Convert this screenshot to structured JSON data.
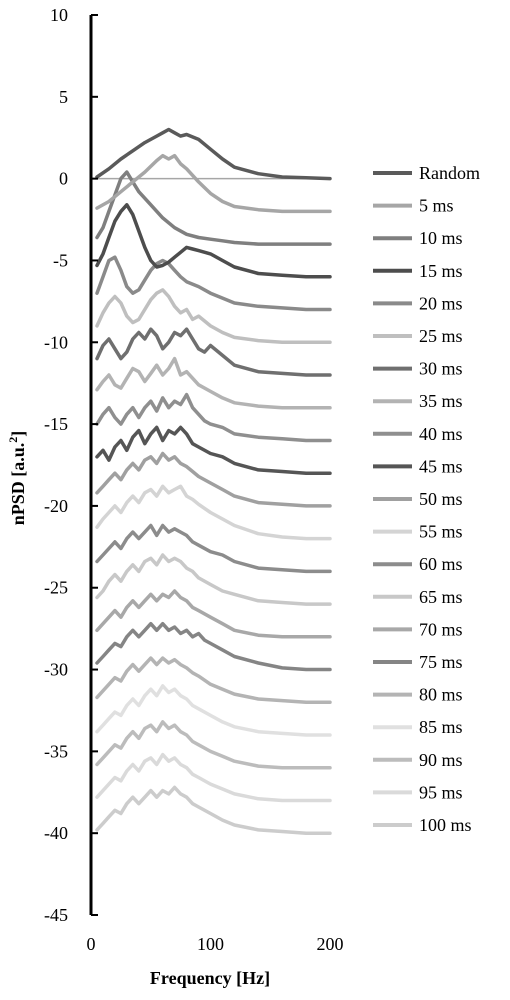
{
  "chart_data": {
    "type": "line",
    "xlabel": "Frequency [Hz]",
    "ylabel": "nPSD [a.u.",
    "ylabel_sup": "2",
    "ylabel_tail": "]",
    "xlim": [
      0,
      200
    ],
    "ylim": [
      -45,
      10
    ],
    "x_ticks": [
      0,
      100,
      200
    ],
    "y_ticks": [
      10,
      5,
      0,
      -5,
      -10,
      -15,
      -20,
      -25,
      -30,
      -35,
      -40,
      -45
    ],
    "grid": false,
    "legend_position": "right",
    "zero_line": true,
    "series": [
      {
        "name": "Random",
        "color": "#5a5a5a",
        "offset": 0,
        "x": [
          5,
          15,
          25,
          35,
          45,
          55,
          60,
          65,
          70,
          75,
          80,
          90,
          100,
          110,
          120,
          140,
          160,
          180,
          200
        ],
        "y": [
          0.1,
          0.6,
          1.2,
          1.7,
          2.2,
          2.6,
          2.8,
          3.0,
          2.8,
          2.6,
          2.7,
          2.4,
          1.8,
          1.2,
          0.7,
          0.3,
          0.1,
          0.05,
          0
        ]
      },
      {
        "name": "5 ms",
        "color": "#a6a6a6",
        "offset": -2,
        "x": [
          5,
          15,
          25,
          35,
          45,
          55,
          60,
          65,
          70,
          75,
          80,
          90,
          100,
          110,
          120,
          140,
          160,
          180,
          200
        ],
        "y": [
          -1.8,
          -1.4,
          -0.8,
          -0.2,
          0.4,
          1.1,
          1.4,
          1.2,
          1.4,
          0.9,
          0.6,
          -0.2,
          -0.9,
          -1.4,
          -1.7,
          -1.9,
          -2,
          -2,
          -2
        ]
      },
      {
        "name": "10 ms",
        "color": "#7f7f7f",
        "offset": -4,
        "x": [
          5,
          10,
          15,
          20,
          25,
          30,
          35,
          40,
          50,
          60,
          70,
          80,
          90,
          100,
          110,
          120,
          140,
          160,
          180,
          200
        ],
        "y": [
          -3.6,
          -3.0,
          -2.0,
          -1.0,
          0.0,
          0.4,
          -0.2,
          -0.8,
          -1.6,
          -2.4,
          -3.0,
          -3.4,
          -3.6,
          -3.7,
          -3.8,
          -3.9,
          -4,
          -4,
          -4,
          -4
        ]
      },
      {
        "name": "15 ms",
        "color": "#4d4d4d",
        "offset": -6,
        "x": [
          5,
          10,
          15,
          20,
          25,
          30,
          35,
          40,
          45,
          50,
          55,
          60,
          65,
          70,
          75,
          80,
          85,
          90,
          100,
          110,
          120,
          140,
          160,
          180,
          200
        ],
        "y": [
          -5.3,
          -4.6,
          -3.6,
          -2.6,
          -2.0,
          -1.6,
          -2.2,
          -3.2,
          -4.2,
          -5.0,
          -5.4,
          -5.3,
          -5.1,
          -4.8,
          -4.5,
          -4.2,
          -4.3,
          -4.4,
          -4.6,
          -5.0,
          -5.4,
          -5.8,
          -5.9,
          -6,
          -6
        ]
      },
      {
        "name": "20 ms",
        "color": "#8a8a8a",
        "offset": -8,
        "x": [
          5,
          10,
          15,
          20,
          25,
          30,
          35,
          40,
          45,
          50,
          55,
          60,
          65,
          70,
          75,
          80,
          90,
          100,
          110,
          120,
          140,
          160,
          180,
          200
        ],
        "y": [
          -7.0,
          -6.0,
          -5.0,
          -4.8,
          -5.6,
          -6.6,
          -7.0,
          -6.8,
          -6.2,
          -5.6,
          -5.2,
          -5.0,
          -5.2,
          -5.6,
          -6.0,
          -6.3,
          -6.6,
          -7.0,
          -7.3,
          -7.6,
          -7.8,
          -7.9,
          -8,
          -8
        ]
      },
      {
        "name": "25 ms",
        "color": "#bfbfbf",
        "offset": -10,
        "x": [
          5,
          10,
          15,
          20,
          25,
          30,
          35,
          40,
          45,
          50,
          55,
          60,
          65,
          70,
          75,
          80,
          85,
          90,
          100,
          110,
          120,
          140,
          160,
          180,
          200
        ],
        "y": [
          -9.0,
          -8.2,
          -7.6,
          -7.2,
          -7.6,
          -8.4,
          -8.8,
          -8.6,
          -8.0,
          -7.4,
          -7.0,
          -6.8,
          -7.2,
          -7.8,
          -8.2,
          -8.0,
          -8.6,
          -8.4,
          -9.0,
          -9.4,
          -9.7,
          -9.9,
          -10,
          -10,
          -10
        ]
      },
      {
        "name": "30 ms",
        "color": "#6f6f6f",
        "offset": -12,
        "x": [
          5,
          10,
          15,
          20,
          25,
          30,
          35,
          40,
          45,
          50,
          55,
          60,
          65,
          70,
          75,
          80,
          85,
          90,
          95,
          100,
          110,
          120,
          140,
          160,
          180,
          200
        ],
        "y": [
          -11.0,
          -10.2,
          -9.8,
          -10.4,
          -11.0,
          -10.6,
          -9.8,
          -9.4,
          -9.8,
          -9.2,
          -9.6,
          -10.4,
          -10.0,
          -9.4,
          -9.6,
          -9.2,
          -9.8,
          -10.4,
          -10.6,
          -10.2,
          -10.8,
          -11.4,
          -11.8,
          -11.9,
          -12,
          -12
        ]
      },
      {
        "name": "35 ms",
        "color": "#b3b3b3",
        "offset": -14,
        "x": [
          5,
          10,
          15,
          20,
          25,
          30,
          35,
          40,
          45,
          50,
          55,
          60,
          65,
          70,
          75,
          80,
          90,
          100,
          110,
          120,
          140,
          160,
          180,
          200
        ],
        "y": [
          -12.9,
          -12.4,
          -12.0,
          -12.6,
          -12.8,
          -12.2,
          -11.6,
          -11.8,
          -12.4,
          -11.9,
          -11.4,
          -12.0,
          -11.6,
          -11.0,
          -12.0,
          -11.8,
          -12.6,
          -13.0,
          -13.4,
          -13.7,
          -13.9,
          -14,
          -14,
          -14
        ]
      },
      {
        "name": "40 ms",
        "color": "#8f8f8f",
        "offset": -16,
        "x": [
          5,
          10,
          15,
          20,
          25,
          30,
          35,
          40,
          45,
          50,
          55,
          60,
          65,
          70,
          75,
          80,
          85,
          90,
          95,
          100,
          110,
          120,
          140,
          160,
          180,
          200
        ],
        "y": [
          -15.0,
          -14.4,
          -14.0,
          -14.6,
          -15.0,
          -14.4,
          -14.0,
          -14.6,
          -14.0,
          -13.6,
          -14.2,
          -13.4,
          -14.0,
          -13.6,
          -13.8,
          -13.2,
          -14.0,
          -14.4,
          -14.8,
          -15.0,
          -15.2,
          -15.6,
          -15.8,
          -15.9,
          -16,
          -16
        ]
      },
      {
        "name": "45 ms",
        "color": "#555555",
        "offset": -18,
        "x": [
          5,
          10,
          15,
          20,
          25,
          30,
          35,
          40,
          45,
          50,
          55,
          60,
          65,
          70,
          75,
          80,
          85,
          90,
          100,
          110,
          120,
          140,
          160,
          180,
          200
        ],
        "y": [
          -17.0,
          -16.6,
          -17.2,
          -16.4,
          -16.0,
          -16.6,
          -15.8,
          -15.4,
          -16.2,
          -15.6,
          -15.2,
          -16.0,
          -15.4,
          -15.6,
          -15.2,
          -15.6,
          -16.2,
          -16.4,
          -16.8,
          -17.0,
          -17.4,
          -17.8,
          -17.9,
          -18,
          -18
        ]
      },
      {
        "name": "50 ms",
        "color": "#a0a0a0",
        "offset": -20,
        "x": [
          5,
          10,
          15,
          20,
          25,
          30,
          35,
          40,
          45,
          50,
          55,
          60,
          65,
          70,
          75,
          80,
          85,
          90,
          100,
          110,
          120,
          140,
          160,
          180,
          200
        ],
        "y": [
          -19.2,
          -18.8,
          -18.4,
          -18.0,
          -18.4,
          -17.8,
          -17.4,
          -17.8,
          -17.2,
          -17.0,
          -17.4,
          -16.8,
          -17.2,
          -17.0,
          -17.4,
          -17.6,
          -17.9,
          -18.2,
          -18.6,
          -19.0,
          -19.4,
          -19.8,
          -19.9,
          -20,
          -20
        ]
      },
      {
        "name": "55 ms",
        "color": "#d4d4d4",
        "offset": -22,
        "x": [
          5,
          10,
          15,
          20,
          25,
          30,
          35,
          40,
          45,
          50,
          55,
          60,
          65,
          70,
          75,
          80,
          85,
          90,
          100,
          110,
          120,
          140,
          160,
          180,
          200
        ],
        "y": [
          -21.3,
          -20.8,
          -20.4,
          -20.0,
          -20.4,
          -19.8,
          -19.4,
          -19.8,
          -19.2,
          -19.0,
          -19.4,
          -18.8,
          -19.2,
          -19.0,
          -18.8,
          -19.4,
          -19.6,
          -19.9,
          -20.4,
          -20.8,
          -21.2,
          -21.7,
          -21.9,
          -22,
          -22
        ]
      },
      {
        "name": "60 ms",
        "color": "#8c8c8c",
        "offset": -24,
        "x": [
          5,
          10,
          15,
          20,
          25,
          30,
          35,
          40,
          45,
          50,
          55,
          60,
          65,
          70,
          75,
          80,
          85,
          90,
          100,
          110,
          120,
          140,
          160,
          180,
          200
        ],
        "y": [
          -23.4,
          -23.0,
          -22.6,
          -22.2,
          -22.6,
          -22.0,
          -21.6,
          -22.0,
          -21.6,
          -21.2,
          -21.8,
          -21.2,
          -21.6,
          -21.4,
          -21.6,
          -21.8,
          -22.2,
          -22.4,
          -22.8,
          -23.0,
          -23.4,
          -23.8,
          -23.9,
          -24,
          -24
        ]
      },
      {
        "name": "65 ms",
        "color": "#c8c8c8",
        "offset": -26,
        "x": [
          5,
          10,
          15,
          20,
          25,
          30,
          35,
          40,
          45,
          50,
          55,
          60,
          65,
          70,
          75,
          80,
          85,
          90,
          100,
          110,
          120,
          140,
          160,
          180,
          200
        ],
        "y": [
          -25.6,
          -25.2,
          -24.6,
          -24.2,
          -24.6,
          -24.0,
          -23.6,
          -24.0,
          -23.4,
          -23.2,
          -23.6,
          -23.0,
          -23.4,
          -23.2,
          -23.4,
          -23.8,
          -24.0,
          -24.4,
          -24.8,
          -25.2,
          -25.4,
          -25.8,
          -25.9,
          -26,
          -26
        ]
      },
      {
        "name": "70 ms",
        "color": "#a8a8a8",
        "offset": -28,
        "x": [
          5,
          10,
          15,
          20,
          25,
          30,
          35,
          40,
          45,
          50,
          55,
          60,
          65,
          70,
          75,
          80,
          85,
          90,
          100,
          110,
          120,
          140,
          160,
          180,
          200
        ],
        "y": [
          -27.6,
          -27.2,
          -26.8,
          -26.4,
          -26.8,
          -26.2,
          -25.8,
          -26.2,
          -25.8,
          -25.4,
          -25.8,
          -25.4,
          -25.6,
          -25.2,
          -25.6,
          -25.8,
          -26.2,
          -26.4,
          -26.8,
          -27.2,
          -27.6,
          -27.9,
          -28,
          -28,
          -28
        ]
      },
      {
        "name": "75 ms",
        "color": "#858585",
        "offset": -30,
        "x": [
          5,
          10,
          15,
          20,
          25,
          30,
          35,
          40,
          45,
          50,
          55,
          60,
          65,
          70,
          75,
          80,
          85,
          90,
          95,
          100,
          110,
          120,
          140,
          160,
          180,
          200
        ],
        "y": [
          -29.6,
          -29.2,
          -28.8,
          -28.4,
          -28.6,
          -28.0,
          -27.6,
          -28.0,
          -27.6,
          -27.2,
          -27.6,
          -27.2,
          -27.6,
          -27.4,
          -27.8,
          -27.6,
          -28.0,
          -27.8,
          -28.2,
          -28.4,
          -28.8,
          -29.2,
          -29.6,
          -29.9,
          -30,
          -30
        ]
      },
      {
        "name": "80 ms",
        "color": "#b4b4b4",
        "offset": -32,
        "x": [
          5,
          10,
          15,
          20,
          25,
          30,
          35,
          40,
          45,
          50,
          55,
          60,
          65,
          70,
          75,
          80,
          85,
          90,
          100,
          110,
          120,
          140,
          160,
          180,
          200
        ],
        "y": [
          -31.7,
          -31.3,
          -30.9,
          -30.5,
          -30.7,
          -30.1,
          -29.7,
          -30.1,
          -29.7,
          -29.3,
          -29.7,
          -29.3,
          -29.6,
          -29.4,
          -29.7,
          -29.9,
          -30.2,
          -30.4,
          -30.9,
          -31.2,
          -31.5,
          -31.8,
          -31.9,
          -32,
          -32
        ]
      },
      {
        "name": "85 ms",
        "color": "#e0e0e0",
        "offset": -34,
        "x": [
          5,
          10,
          15,
          20,
          25,
          30,
          35,
          40,
          45,
          50,
          55,
          60,
          65,
          70,
          75,
          80,
          85,
          90,
          100,
          110,
          120,
          140,
          160,
          180,
          200
        ],
        "y": [
          -33.8,
          -33.4,
          -33.0,
          -32.6,
          -32.8,
          -32.2,
          -31.8,
          -32.2,
          -31.6,
          -31.2,
          -31.6,
          -31.0,
          -31.4,
          -31.2,
          -31.6,
          -31.8,
          -32.2,
          -32.4,
          -32.8,
          -33.2,
          -33.5,
          -33.8,
          -33.9,
          -34,
          -34
        ]
      },
      {
        "name": "90 ms",
        "color": "#bcbcbc",
        "offset": -36,
        "x": [
          5,
          10,
          15,
          20,
          25,
          30,
          35,
          40,
          45,
          50,
          55,
          60,
          65,
          70,
          75,
          80,
          85,
          90,
          100,
          110,
          120,
          140,
          160,
          180,
          200
        ],
        "y": [
          -35.8,
          -35.4,
          -35.0,
          -34.6,
          -34.8,
          -34.2,
          -33.8,
          -34.2,
          -33.6,
          -33.4,
          -33.8,
          -33.2,
          -33.6,
          -33.4,
          -33.8,
          -34.0,
          -34.4,
          -34.6,
          -35.0,
          -35.3,
          -35.6,
          -35.9,
          -36,
          -36,
          -36
        ]
      },
      {
        "name": "95 ms",
        "color": "#dadada",
        "offset": -38,
        "x": [
          5,
          10,
          15,
          20,
          25,
          30,
          35,
          40,
          45,
          50,
          55,
          60,
          65,
          70,
          75,
          80,
          85,
          90,
          100,
          110,
          120,
          140,
          160,
          180,
          200
        ],
        "y": [
          -37.8,
          -37.4,
          -37.0,
          -36.6,
          -36.8,
          -36.2,
          -35.8,
          -36.2,
          -35.6,
          -35.4,
          -35.8,
          -35.2,
          -35.6,
          -35.4,
          -35.8,
          -36.0,
          -36.4,
          -36.6,
          -37.0,
          -37.3,
          -37.6,
          -37.9,
          -38,
          -38,
          -38
        ]
      },
      {
        "name": "100 ms",
        "color": "#cccccc",
        "offset": -40,
        "x": [
          5,
          10,
          15,
          20,
          25,
          30,
          35,
          40,
          45,
          50,
          55,
          60,
          65,
          70,
          75,
          80,
          85,
          90,
          100,
          110,
          120,
          140,
          160,
          180,
          200
        ],
        "y": [
          -39.8,
          -39.4,
          -39.0,
          -38.6,
          -38.8,
          -38.2,
          -37.8,
          -38.2,
          -37.8,
          -37.4,
          -37.8,
          -37.4,
          -37.6,
          -37.2,
          -37.6,
          -37.8,
          -38.2,
          -38.4,
          -38.8,
          -39.2,
          -39.5,
          -39.8,
          -39.9,
          -40,
          -40
        ]
      }
    ]
  }
}
